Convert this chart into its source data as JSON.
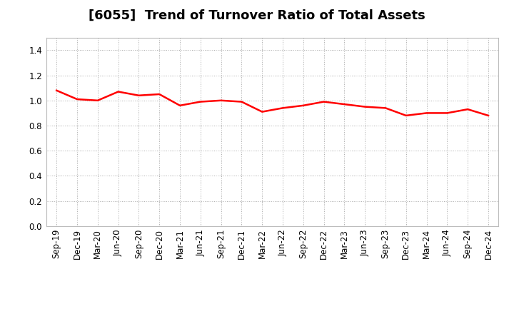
{
  "title": "[6055]  Trend of Turnover Ratio of Total Assets",
  "labels": [
    "Sep-19",
    "Dec-19",
    "Mar-20",
    "Jun-20",
    "Sep-20",
    "Dec-20",
    "Mar-21",
    "Jun-21",
    "Sep-21",
    "Dec-21",
    "Mar-22",
    "Jun-22",
    "Sep-22",
    "Dec-22",
    "Mar-23",
    "Jun-23",
    "Sep-23",
    "Dec-23",
    "Mar-24",
    "Jun-24",
    "Sep-24",
    "Dec-24"
  ],
  "values": [
    1.08,
    1.01,
    1.0,
    1.07,
    1.04,
    1.05,
    0.96,
    0.99,
    1.0,
    0.99,
    0.91,
    0.94,
    0.96,
    0.99,
    0.97,
    0.95,
    0.94,
    0.88,
    0.9,
    0.9,
    0.93,
    0.88
  ],
  "line_color": "#ff0000",
  "line_width": 1.8,
  "ylim": [
    0.0,
    1.5
  ],
  "yticks": [
    0.0,
    0.2,
    0.4,
    0.6,
    0.8,
    1.0,
    1.2,
    1.4
  ],
  "grid_color": "#aaaaaa",
  "background_color": "#ffffff",
  "title_fontsize": 13,
  "tick_fontsize": 8.5
}
